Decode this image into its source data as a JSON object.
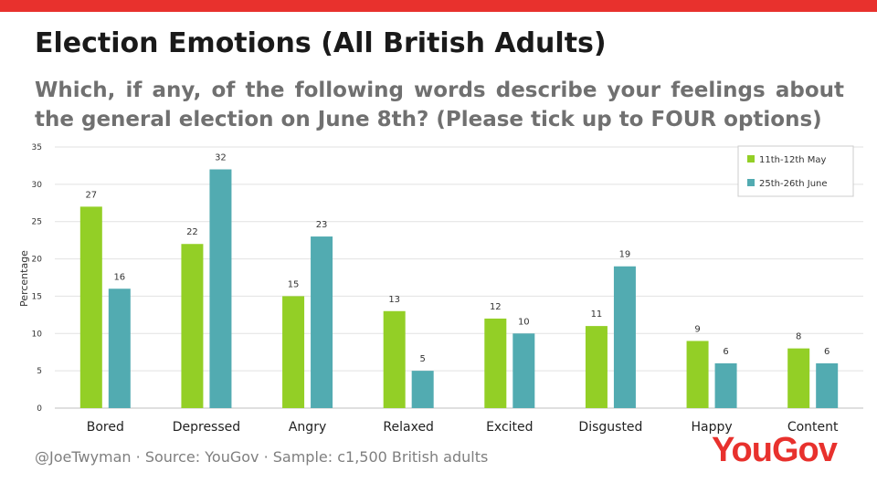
{
  "header": {
    "title": "Election Emotions (All British Adults)",
    "subtitle": "Which, if any, of the following words describe your feelings about the general election on June 8th? (Please tick up to FOUR options)"
  },
  "footer": {
    "text": "@JoeTwyman · Source: YouGov ·  Sample: c1,500 British adults",
    "logo": "YouGov"
  },
  "colors": {
    "accent": "#e8312d",
    "series1": "#93cf26",
    "series2": "#52abb1"
  },
  "chart_data": {
    "type": "bar",
    "categories": [
      "Bored",
      "Depressed",
      "Angry",
      "Relaxed",
      "Excited",
      "Disgusted",
      "Happy",
      "Content"
    ],
    "series": [
      {
        "name": "11th-12th May",
        "values": [
          27,
          22,
          15,
          13,
          12,
          11,
          9,
          8
        ],
        "color": "#93cf26"
      },
      {
        "name": "25th-26th June",
        "values": [
          16,
          32,
          23,
          5,
          10,
          19,
          6,
          6
        ],
        "color": "#52abb1"
      }
    ],
    "title": "Election Emotions (All British Adults)",
    "xlabel": "",
    "ylabel": "Percentage",
    "ylim": [
      0,
      35
    ],
    "yticks": [
      0,
      5,
      10,
      15,
      20,
      25,
      30,
      35
    ],
    "grid": true,
    "legend": "top-right"
  }
}
